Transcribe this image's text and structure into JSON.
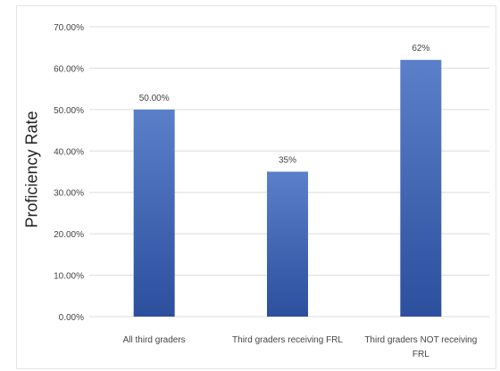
{
  "chart_data": {
    "type": "bar",
    "title": "",
    "xlabel": "",
    "ylabel": "Proficiency Rate",
    "categories": [
      [
        "All third graders"
      ],
      [
        "Third graders receiving FRL"
      ],
      [
        "Third graders NOT receiving",
        "FRL"
      ]
    ],
    "values": [
      50,
      35,
      62
    ],
    "data_labels": [
      "50.00%",
      "35%",
      "62%"
    ],
    "ylim": [
      0,
      70
    ],
    "yticks": [
      "0.00%",
      "10.00%",
      "20.00%",
      "30.00%",
      "40.00%",
      "50.00%",
      "60.00%",
      "70.00%"
    ],
    "grid": true,
    "legend": "none",
    "colors": {
      "bar_top": "#5b7fc9",
      "bar_bottom": "#2c4f9e",
      "grid": "#dcdcdc",
      "text": "#444444"
    }
  }
}
